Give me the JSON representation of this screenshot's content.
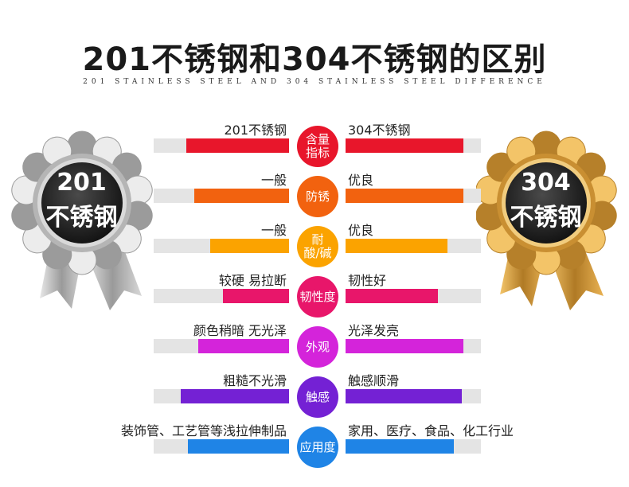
{
  "title": "201不锈钢和304不锈钢的区别",
  "subtitle": "201 STAINLESS STEEL AND 304 STAINLESS STEEL DIFFERENCE",
  "medals": {
    "left": {
      "line1": "201",
      "line2": "不锈钢"
    },
    "right": {
      "line1": "304",
      "line2": "不锈钢"
    }
  },
  "rows": [
    {
      "center": "含量\n指标",
      "left_label": "201不锈钢",
      "right_label": "304不锈钢",
      "left_level": 0.76,
      "right_level": 0.87,
      "color": "#e8162b"
    },
    {
      "center": "防锈",
      "left_label": "一般",
      "right_label": "优良",
      "left_level": 0.7,
      "right_level": 0.87,
      "color": "#f2620f"
    },
    {
      "center": "耐\n酸/碱",
      "left_label": "一般",
      "right_label": "优良",
      "left_level": 0.58,
      "right_level": 0.75,
      "color": "#fba300"
    },
    {
      "center": "韧性度",
      "left_label": "较硬 易拉断",
      "right_label": "韧性好",
      "left_level": 0.49,
      "right_level": 0.68,
      "color": "#e8166a"
    },
    {
      "center": "外观",
      "left_label": "颜色稍暗 无光泽",
      "right_label": "光泽发亮",
      "left_level": 0.67,
      "right_level": 0.87,
      "color": "#d424da"
    },
    {
      "center": "触感",
      "left_label": "粗糙不光滑",
      "right_label": "触感顺滑",
      "left_level": 0.8,
      "right_level": 0.86,
      "color": "#7421d4"
    },
    {
      "center": "应用度",
      "left_label": "装饰管、工艺管等浅拉伸制品",
      "right_label": "家用、医疗、食品、化工行业",
      "left_level": 0.75,
      "right_level": 0.8,
      "color": "#1f84e6"
    }
  ],
  "colors": {
    "track": "#e4e4e4",
    "silver": "#a9a9a9",
    "gold": "#d69b3a"
  }
}
